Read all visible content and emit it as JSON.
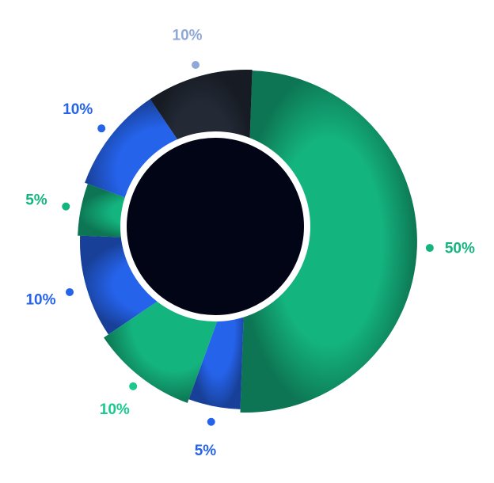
{
  "chart_data": {
    "type": "pie",
    "values": [
      50,
      5,
      10,
      10,
      5,
      10,
      10
    ],
    "value_labels": [
      "50%",
      "5%",
      "10%",
      "10%",
      "5%",
      "10%",
      "10%"
    ],
    "colors": [
      "#14b47f",
      "#2563eb",
      "#14b47f",
      "#2563eb",
      "#14b47f",
      "#2563eb",
      "#232a36"
    ],
    "label_colors": [
      "#14b47f",
      "#2563eb",
      "#19c98d",
      "#2563eb",
      "#14b47f",
      "#2563eb",
      "#8fa8d8"
    ]
  }
}
